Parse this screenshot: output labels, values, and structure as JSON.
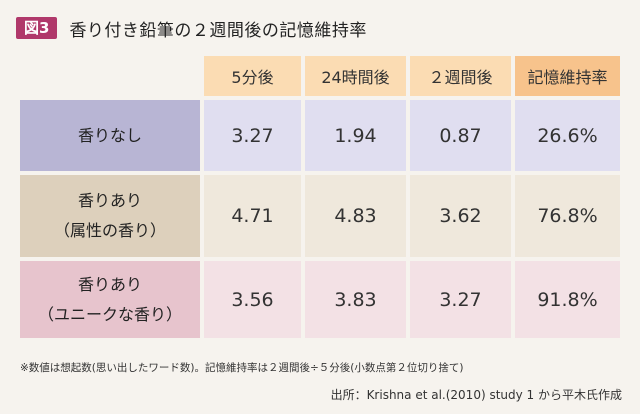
{
  "figure": {
    "badge": "図3",
    "title": "香り付き鉛筆の２週間後の記憶維持率"
  },
  "chart_data": {
    "type": "table",
    "columns": [
      "5分後",
      "24時間後",
      "２週間後",
      "記憶維持率"
    ],
    "rows": [
      {
        "label_lines": [
          "香りなし"
        ],
        "values": [
          "3.27",
          "1.94",
          "0.87",
          "26.6%"
        ]
      },
      {
        "label_lines": [
          "香りあり",
          "（属性の香り）"
        ],
        "values": [
          "4.71",
          "4.83",
          "3.62",
          "76.8%"
        ]
      },
      {
        "label_lines": [
          "香りあり",
          "（ユニークな香り）"
        ],
        "values": [
          "3.56",
          "3.83",
          "3.27",
          "91.8%"
        ]
      }
    ]
  },
  "note": "※数値は想起数(思い出したワード数)。記憶維持率は２週間後÷５分後(小数点第２位切り捨て)",
  "source": "出所：Krishna et al.(2010) study 1 から平木氏作成",
  "colors": {
    "badge": "#b0386a",
    "header": "#fbdcb3",
    "header_key": "#f7c38c",
    "row1_label": "#b8b5d4",
    "row2_label": "#ddd0bc",
    "row3_label": "#e7c4cd"
  }
}
